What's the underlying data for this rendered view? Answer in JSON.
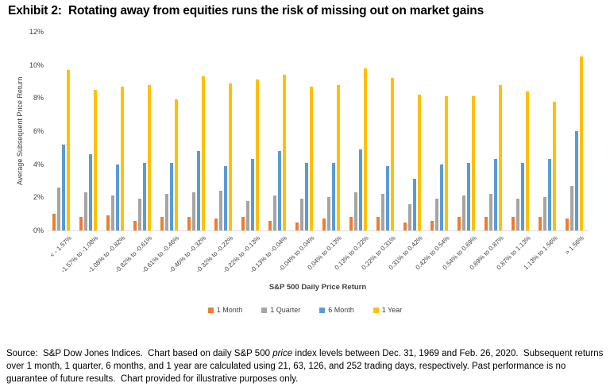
{
  "title": "Exhibit 2:  Rotating away from equities runs the risk of missing out on market gains",
  "chart_data": {
    "type": "bar",
    "title": "Exhibit 2:  Rotating away from equities runs the risk of missing out on market gains",
    "xlabel": "S&P 500 Daily Price Return",
    "ylabel": "Average Subsequent Price Return",
    "ylim": [
      0,
      12
    ],
    "yticks": [
      "0%",
      "2%",
      "4%",
      "6%",
      "8%",
      "10%",
      "12%"
    ],
    "grid": false,
    "legend_position": "bottom",
    "categories": [
      "< - 1.57%",
      "-1.57% to -1.08%",
      "-1.08% to -0.82%",
      "-0.82% to -0.61%",
      "-0.61% to -0.46%",
      "-0.46% to -0.32%",
      "-0.32% to -0.22%",
      "-0.22% to -0.13%",
      "-0.13% to -0.04%",
      "-0.04% to 0.04%",
      "0.04% to 0.13%",
      "0.13% to 0.22%",
      "0.22% to 0.31%",
      "0.31% to 0.42%",
      "0.42% to 0.54%",
      "0.54% to 0.69%",
      "0.69% to 0.87%",
      "0.87% to 1.13%",
      "1.13% to 1.56%",
      "> 1.56%"
    ],
    "series": [
      {
        "name": "1 Month",
        "color": "#ED7D31",
        "values": [
          1.0,
          0.8,
          0.9,
          0.6,
          0.8,
          0.8,
          0.7,
          0.8,
          0.6,
          0.5,
          0.7,
          0.8,
          0.8,
          0.5,
          0.6,
          0.8,
          0.8,
          0.8,
          0.8,
          0.7
        ]
      },
      {
        "name": "1 Quarter",
        "color": "#A5A5A5",
        "values": [
          2.6,
          2.3,
          2.1,
          1.9,
          2.2,
          2.3,
          2.4,
          1.8,
          2.1,
          1.9,
          2.0,
          2.3,
          2.2,
          1.6,
          1.9,
          2.1,
          2.2,
          1.9,
          2.0,
          2.7
        ]
      },
      {
        "name": "6 Month",
        "color": "#5B9BD5",
        "values": [
          5.2,
          4.6,
          4.0,
          4.1,
          4.1,
          4.8,
          3.9,
          4.3,
          4.8,
          4.1,
          4.1,
          4.9,
          3.9,
          3.1,
          4.0,
          4.1,
          4.3,
          4.1,
          4.3,
          6.0
        ]
      },
      {
        "name": "1 Year",
        "color": "#FFC000",
        "values": [
          9.7,
          8.5,
          8.7,
          8.8,
          7.9,
          9.3,
          8.9,
          9.1,
          9.4,
          8.7,
          8.8,
          9.8,
          9.2,
          8.2,
          8.1,
          8.1,
          8.8,
          8.4,
          7.8,
          10.5
        ]
      }
    ],
    "axis_line_color": "#d9d9d9",
    "text_color": "#404040"
  },
  "footnote": {
    "part1": "Source:  S&P Dow Jones Indices.  Chart based on daily S&P 500 ",
    "italic": "price",
    "part2": " index levels between Dec. 31, 1969 and Feb. 26, 2020.  Subsequent returns over 1 month, 1 quarter, 6 months, and 1 year are calculated using 21, 63, 126, and 252 trading days, respectively. Past performance is no guarantee of future results.  Chart provided for illustrative purposes only."
  }
}
